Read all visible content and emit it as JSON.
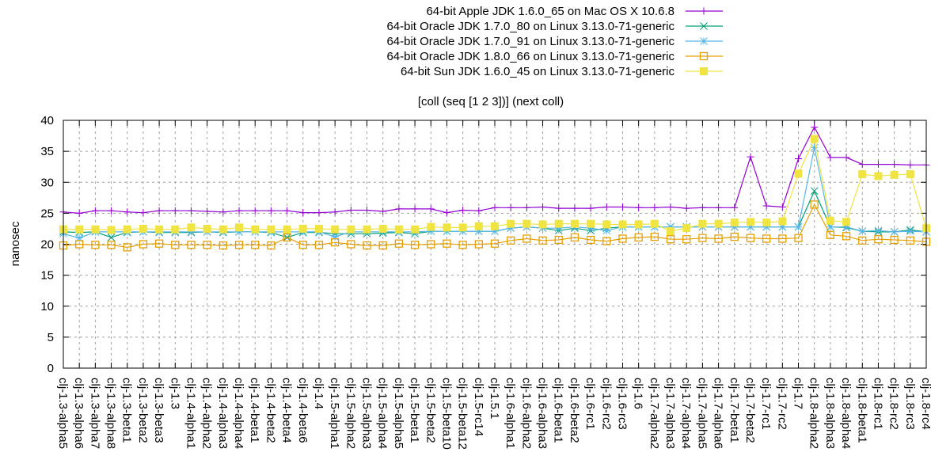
{
  "chart_data": {
    "type": "line",
    "title": "[coll (seq [1 2 3])] (next coll)",
    "xlabel": "",
    "ylabel": "nanosec",
    "ylim": [
      0,
      40
    ],
    "yticks": [
      0,
      5,
      10,
      15,
      20,
      25,
      30,
      35,
      40
    ],
    "grid": true,
    "legend_position": "top-right",
    "categories": [
      "clj-1.3-alpha5",
      "clj-1.3-alpha6",
      "clj-1.3-alpha7",
      "clj-1.3-alpha8",
      "clj-1.3-beta1",
      "clj-1.3-beta2",
      "clj-1.3-beta3",
      "clj-1.3",
      "clj-1.4-alpha1",
      "clj-1.4-alpha2",
      "clj-1.4-alpha3",
      "clj-1.4-alpha4",
      "clj-1.4-beta1",
      "clj-1.4-beta2",
      "clj-1.4-beta4",
      "clj-1.4-beta6",
      "clj-1.4",
      "clj-1.5-alpha1",
      "clj-1.5-alpha2",
      "clj-1.5-alpha3",
      "clj-1.5-alpha4",
      "clj-1.5-alpha5",
      "clj-1.5-beta1",
      "clj-1.5-beta2",
      "clj-1.5-beta10",
      "clj-1.5-beta12",
      "clj-1.5-rc14",
      "clj-1.5.1",
      "clj-1.6-alpha1",
      "clj-1.6-alpha2",
      "clj-1.6-alpha3",
      "clj-1.6-beta1",
      "clj-1.6-beta2",
      "clj-1.6-rc1",
      "clj-1.6-rc2",
      "clj-1.6-rc3",
      "clj-1.6",
      "clj-1.7-alpha2",
      "clj-1.7-alpha3",
      "clj-1.7-alpha4",
      "clj-1.7-alpha5",
      "clj-1.7-alpha6",
      "clj-1.7-beta1",
      "clj-1.7-beta2",
      "clj-1.7-rc1",
      "clj-1.7-rc2",
      "clj-1.7",
      "clj-1.8-alpha2",
      "clj-1.8-alpha3",
      "clj-1.8-alpha4",
      "clj-1.8-beta1",
      "clj-1.8-rc1",
      "clj-1.8-rc2",
      "clj-1.8-rc3",
      "clj-1.8-rc4"
    ],
    "series": [
      {
        "name": "64-bit Apple JDK 1.6.0_65 on Mac OS X 10.6.8",
        "color": "#9400d3",
        "marker": "plus",
        "values": [
          25.2,
          25.0,
          25.4,
          25.4,
          25.2,
          25.1,
          25.4,
          25.4,
          25.4,
          25.3,
          25.2,
          25.4,
          25.4,
          25.4,
          25.4,
          25.1,
          25.1,
          25.2,
          25.5,
          25.5,
          25.3,
          25.7,
          25.7,
          25.7,
          25.1,
          25.5,
          25.4,
          25.9,
          25.9,
          25.9,
          26.0,
          25.8,
          25.8,
          25.8,
          26.0,
          26.0,
          25.9,
          25.9,
          26.0,
          25.8,
          25.9,
          25.9,
          25.9,
          34.1,
          26.2,
          26.0,
          33.8,
          38.9,
          34.0,
          34.0,
          32.9,
          32.9,
          32.9,
          32.8,
          32.8
        ]
      },
      {
        "name": "64-bit Oracle JDK 1.7.0_80 on Linux 3.13.0-71-generic",
        "color": "#009e73",
        "marker": "cross",
        "values": [
          22.0,
          21.9,
          22.0,
          21.1,
          21.9,
          22.0,
          21.9,
          21.9,
          21.9,
          22.0,
          21.9,
          22.0,
          22.0,
          21.9,
          21.1,
          21.9,
          21.9,
          21.7,
          21.7,
          21.7,
          21.8,
          21.9,
          21.7,
          22.1,
          22.1,
          22.1,
          22.1,
          22.1,
          22.6,
          22.8,
          22.6,
          22.2,
          22.6,
          22.2,
          22.6,
          22.8,
          22.8,
          22.8,
          22.8,
          22.8,
          22.8,
          22.8,
          22.8,
          22.8,
          22.8,
          22.8,
          22.8,
          28.6,
          22.8,
          22.7,
          22.1,
          22.0,
          22.0,
          22.3,
          22.0
        ]
      },
      {
        "name": "64-bit Oracle JDK 1.7.0_91 on Linux 3.13.0-71-generic",
        "color": "#56b4e9",
        "marker": "star",
        "values": [
          21.7,
          21.0,
          22.0,
          22.0,
          22.0,
          22.0,
          22.0,
          22.0,
          22.0,
          22.0,
          22.0,
          22.0,
          22.0,
          22.0,
          22.0,
          22.0,
          22.0,
          21.2,
          22.0,
          22.0,
          22.0,
          22.0,
          22.0,
          22.1,
          22.1,
          22.1,
          22.1,
          22.1,
          22.6,
          22.8,
          22.6,
          22.6,
          22.8,
          22.6,
          22.2,
          22.8,
          22.8,
          22.8,
          22.8,
          22.8,
          22.8,
          22.8,
          22.8,
          22.8,
          22.8,
          22.8,
          22.8,
          35.6,
          22.8,
          22.8,
          22.1,
          22.2,
          22.0,
          22.1,
          22.0
        ]
      },
      {
        "name": "64-bit Oracle JDK 1.8.0_66 on Linux 3.13.0-71-generic",
        "color": "#e69f00",
        "marker": "box",
        "values": [
          19.8,
          20.0,
          19.9,
          19.9,
          19.5,
          20.0,
          20.1,
          19.9,
          19.9,
          19.9,
          19.8,
          19.9,
          19.9,
          19.8,
          21.1,
          19.9,
          19.9,
          20.3,
          20.0,
          19.8,
          19.8,
          20.1,
          19.9,
          20.0,
          20.1,
          19.9,
          20.0,
          20.1,
          20.6,
          20.9,
          20.6,
          20.7,
          21.1,
          20.7,
          20.5,
          20.9,
          21.1,
          21.2,
          20.8,
          20.8,
          21.0,
          20.9,
          21.2,
          21.0,
          20.9,
          20.9,
          21.0,
          26.4,
          21.5,
          21.3,
          20.6,
          20.8,
          20.7,
          20.6,
          20.4
        ]
      },
      {
        "name": "64-bit Sun JDK 1.6.0_45 on Linux 3.13.0-71-generic",
        "color": "#f0e442",
        "marker": "filled-box",
        "values": [
          22.4,
          22.4,
          22.4,
          22.3,
          22.4,
          22.5,
          22.4,
          22.4,
          22.7,
          22.5,
          22.4,
          22.7,
          22.4,
          22.4,
          22.4,
          22.5,
          22.5,
          22.4,
          22.4,
          22.4,
          22.5,
          22.4,
          22.4,
          22.8,
          22.7,
          22.7,
          22.9,
          22.9,
          23.3,
          23.3,
          23.2,
          23.3,
          23.3,
          23.3,
          23.2,
          23.2,
          23.2,
          23.3,
          22.1,
          22.6,
          23.3,
          23.3,
          23.5,
          23.6,
          23.5,
          23.7,
          31.4,
          37.0,
          23.8,
          23.6,
          31.3,
          31.0,
          31.2,
          31.3,
          22.6
        ]
      }
    ]
  }
}
